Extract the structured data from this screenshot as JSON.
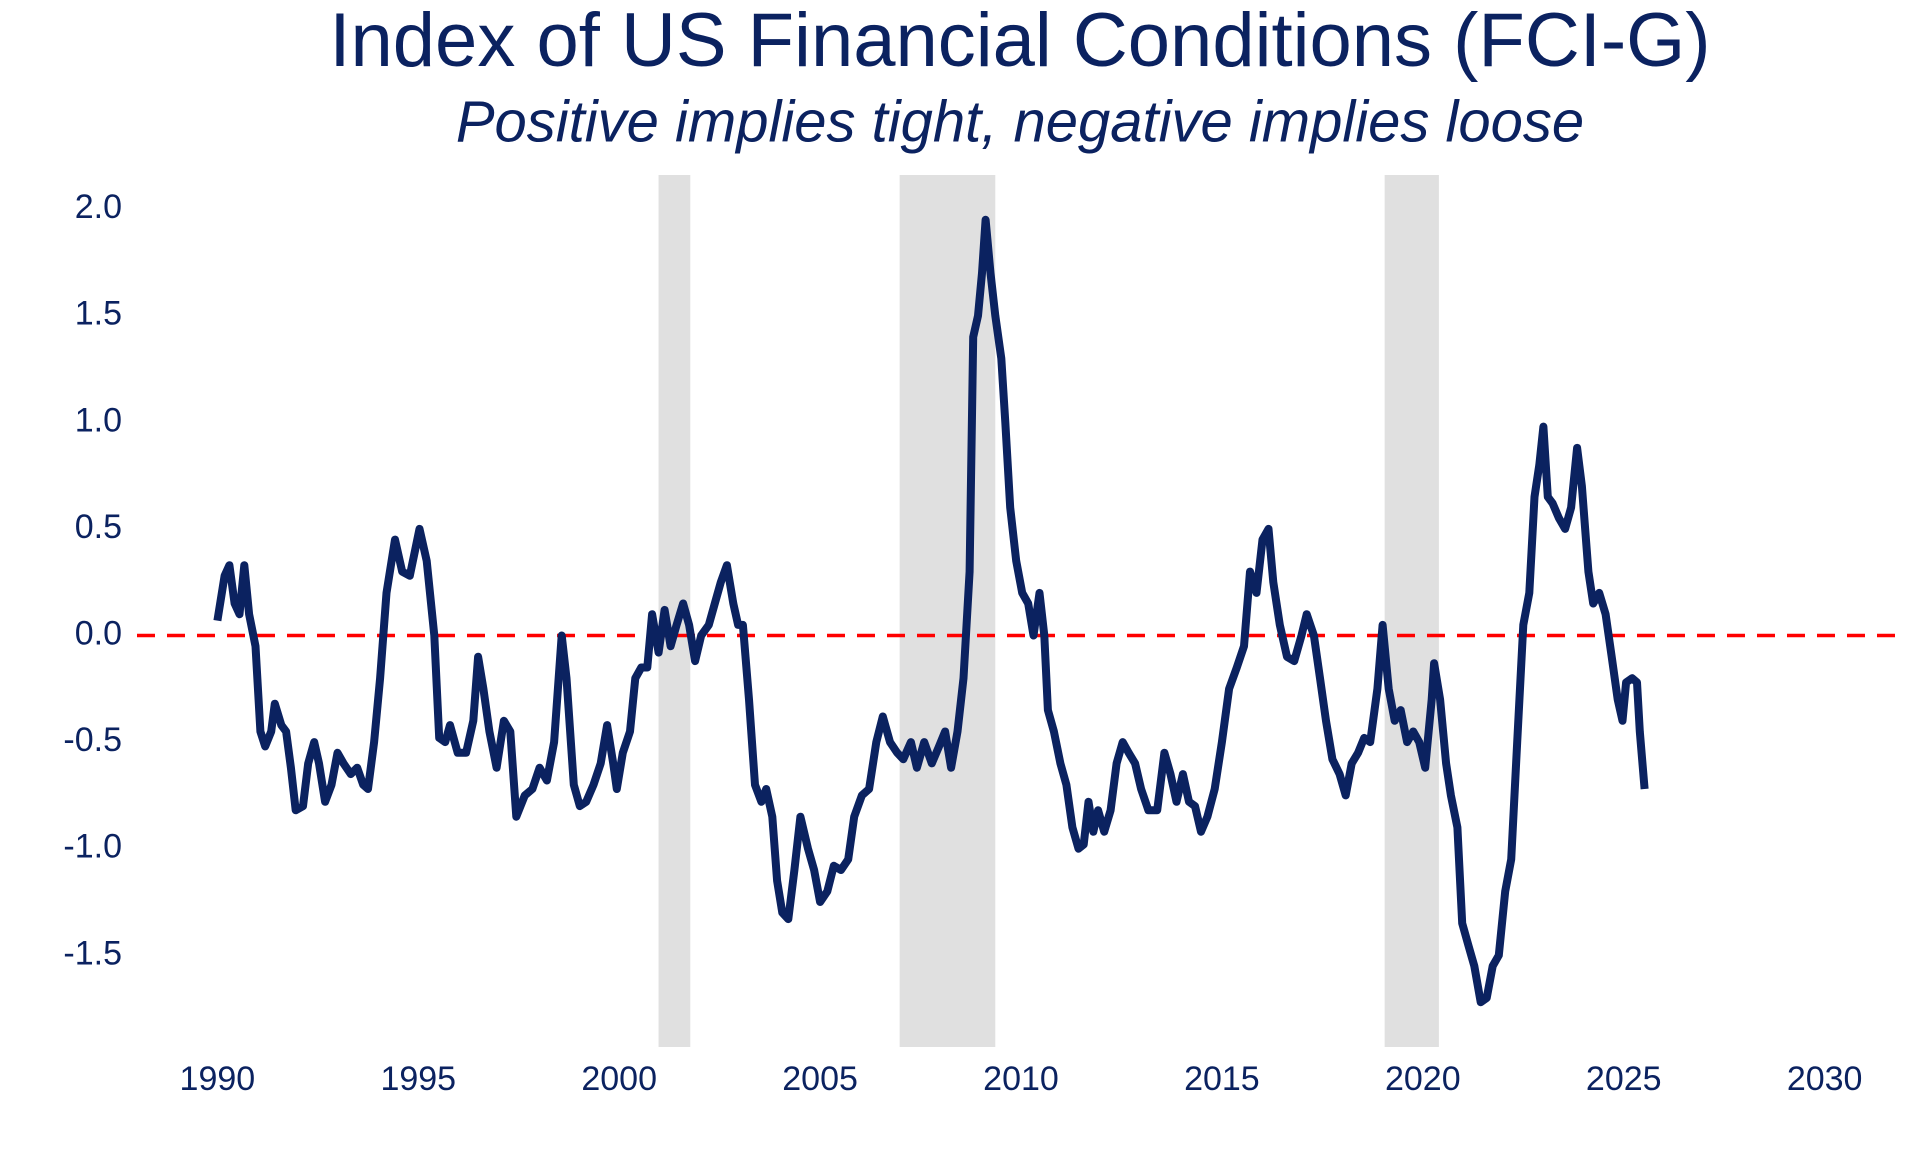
{
  "chart_data": {
    "type": "line",
    "title": "Index of US Financial Conditions (FCI-G)",
    "subtitle": "Positive implies tight, negative implies loose",
    "color": "#0b2260",
    "reference_line": {
      "value": 0,
      "color": "#ff0000"
    },
    "shaded_periods": [
      [
        2000.98,
        2001.77
      ],
      [
        2006.98,
        2009.36
      ],
      [
        2019.05,
        2020.4
      ]
    ],
    "shade_color": "#e0e0e0",
    "xlim": [
      1988,
      2032
    ],
    "ylim": [
      -1.93,
      2.16
    ],
    "xticks": [
      1990,
      1995,
      2000,
      2005,
      2010,
      2015,
      2020,
      2025,
      2030
    ],
    "yticks": [
      {
        "value": 2,
        "label": "2.0"
      },
      1.5,
      {
        "value": 1,
        "label": "1.0"
      },
      0.5,
      {
        "value": 0,
        "label": "0.0"
      },
      -0.5,
      {
        "value": -1,
        "label": "-1.0"
      },
      -1.5
    ],
    "x": [
      1990.0,
      1990.18,
      1990.3,
      1990.43,
      1990.55,
      1990.67,
      1990.79,
      1990.95,
      1991.07,
      1991.19,
      1991.34,
      1991.43,
      1991.59,
      1991.71,
      1991.83,
      1991.95,
      1992.13,
      1992.26,
      1992.41,
      1992.53,
      1992.68,
      1992.84,
      1992.99,
      1993.14,
      1993.32,
      1993.48,
      1993.63,
      1993.75,
      1993.9,
      1994.05,
      1994.21,
      1994.42,
      1994.6,
      1994.79,
      1995.03,
      1995.21,
      1995.4,
      1995.52,
      1995.67,
      1995.79,
      1995.98,
      1996.19,
      1996.37,
      1996.49,
      1996.62,
      1996.77,
      1996.95,
      1997.13,
      1997.29,
      1997.44,
      1997.65,
      1997.84,
      1998.02,
      1998.2,
      1998.38,
      1998.57,
      1998.69,
      1998.87,
      1999.02,
      1999.18,
      1999.36,
      1999.54,
      1999.7,
      1999.85,
      1999.94,
      2000.09,
      2000.27,
      2000.4,
      2000.55,
      2000.7,
      2000.82,
      2000.98,
      2001.13,
      2001.28,
      2001.43,
      2001.59,
      2001.74,
      2001.89,
      2002.04,
      2002.23,
      2002.38,
      2002.53,
      2002.68,
      2002.84,
      2002.96,
      2003.08,
      2003.23,
      2003.38,
      2003.54,
      2003.66,
      2003.81,
      2003.93,
      2004.06,
      2004.21,
      2004.36,
      2004.51,
      2004.7,
      2004.85,
      2005.0,
      2005.18,
      2005.34,
      2005.52,
      2005.7,
      2005.85,
      2006.04,
      2006.22,
      2006.4,
      2006.56,
      2006.74,
      2006.92,
      2007.07,
      2007.26,
      2007.41,
      2007.59,
      2007.78,
      2007.96,
      2008.11,
      2008.26,
      2008.42,
      2008.57,
      2008.72,
      2008.81,
      2008.93,
      2009.03,
      2009.12,
      2009.24,
      2009.36,
      2009.51,
      2009.61,
      2009.73,
      2009.88,
      2010.03,
      2010.18,
      2010.31,
      2010.46,
      2010.58,
      2010.67,
      2010.82,
      2010.98,
      2011.13,
      2011.28,
      2011.43,
      2011.56,
      2011.68,
      2011.8,
      2011.92,
      2012.07,
      2012.23,
      2012.38,
      2012.53,
      2012.68,
      2012.84,
      2012.99,
      2013.17,
      2013.39,
      2013.57,
      2013.72,
      2013.87,
      2014.03,
      2014.18,
      2014.33,
      2014.48,
      2014.64,
      2014.82,
      2015.0,
      2015.18,
      2015.37,
      2015.55,
      2015.7,
      2015.86,
      2016.01,
      2016.16,
      2016.28,
      2016.44,
      2016.62,
      2016.8,
      2016.98,
      2017.11,
      2017.29,
      2017.44,
      2017.59,
      2017.75,
      2017.93,
      2018.08,
      2018.23,
      2018.39,
      2018.54,
      2018.69,
      2018.87,
      2019.0,
      2019.15,
      2019.3,
      2019.45,
      2019.61,
      2019.76,
      2019.91,
      2020.06,
      2020.22,
      2020.28,
      2020.43,
      2020.58,
      2020.7,
      2020.86,
      2020.98,
      2021.13,
      2021.28,
      2021.44,
      2021.59,
      2021.74,
      2021.89,
      2022.05,
      2022.2,
      2022.35,
      2022.5,
      2022.65,
      2022.78,
      2022.9,
      2023.0,
      2023.11,
      2023.23,
      2023.39,
      2023.54,
      2023.69,
      2023.84,
      2023.96,
      2024.12,
      2024.24,
      2024.39,
      2024.55,
      2024.7,
      2024.85,
      2024.97,
      2025.06,
      2025.21,
      2025.33,
      2025.4,
      2025.52
    ],
    "values": [
      0.07,
      0.28,
      0.33,
      0.15,
      0.1,
      0.33,
      0.1,
      -0.05,
      -0.45,
      -0.52,
      -0.45,
      -0.32,
      -0.42,
      -0.45,
      -0.62,
      -0.82,
      -0.8,
      -0.6,
      -0.5,
      -0.6,
      -0.78,
      -0.7,
      -0.55,
      -0.6,
      -0.65,
      -0.62,
      -0.7,
      -0.72,
      -0.5,
      -0.2,
      0.2,
      0.45,
      0.3,
      0.28,
      0.5,
      0.35,
      0,
      -0.48,
      -0.5,
      -0.42,
      -0.55,
      -0.55,
      -0.4,
      -0.1,
      -0.25,
      -0.45,
      -0.62,
      -0.4,
      -0.45,
      -0.85,
      -0.75,
      -0.72,
      -0.62,
      -0.68,
      -0.5,
      0.0,
      -0.2,
      -0.7,
      -0.8,
      -0.78,
      -0.7,
      -0.6,
      -0.42,
      -0.6,
      -0.72,
      -0.55,
      -0.45,
      -0.2,
      -0.15,
      -0.15,
      0.1,
      -0.08,
      0.12,
      -0.05,
      0.05,
      0.15,
      0.05,
      -0.12,
      0.0,
      0.05,
      0.15,
      0.25,
      0.33,
      0.15,
      0.05,
      0.05,
      -0.3,
      -0.7,
      -0.78,
      -0.72,
      -0.85,
      -1.15,
      -1.3,
      -1.33,
      -1.1,
      -0.85,
      -1.0,
      -1.1,
      -1.25,
      -1.2,
      -1.08,
      -1.1,
      -1.05,
      -0.85,
      -0.75,
      -0.72,
      -0.5,
      -0.38,
      -0.5,
      -0.55,
      -0.58,
      -0.5,
      -0.62,
      -0.5,
      -0.6,
      -0.52,
      -0.45,
      -0.62,
      -0.45,
      -0.2,
      0.3,
      1.4,
      1.5,
      1.7,
      1.95,
      1.7,
      1.5,
      1.3,
      1.0,
      0.6,
      0.35,
      0.2,
      0.15,
      0.0,
      0.2,
      0.0,
      -0.35,
      -0.45,
      -0.6,
      -0.7,
      -0.9,
      -1.0,
      -0.98,
      -0.78,
      -0.92,
      -0.82,
      -0.92,
      -0.82,
      -0.6,
      -0.5,
      -0.55,
      -0.6,
      -0.72,
      -0.82,
      -0.82,
      -0.55,
      -0.65,
      -0.78,
      -0.65,
      -0.78,
      -0.8,
      -0.92,
      -0.85,
      -0.72,
      -0.5,
      -0.25,
      -0.15,
      -0.05,
      0.3,
      0.2,
      0.45,
      0.5,
      0.25,
      0.05,
      -0.1,
      -0.12,
      0.0,
      0.1,
      0.0,
      -0.2,
      -0.4,
      -0.58,
      -0.65,
      -0.75,
      -0.6,
      -0.55,
      -0.48,
      -0.5,
      -0.25,
      0.05,
      -0.25,
      -0.4,
      -0.35,
      -0.5,
      -0.45,
      -0.5,
      -0.62,
      -0.3,
      -0.13,
      -0.3,
      -0.6,
      -0.75,
      -0.9,
      -1.35,
      -1.45,
      -1.55,
      -1.72,
      -1.7,
      -1.55,
      -1.5,
      -1.2,
      -1.05,
      -0.5,
      0.05,
      0.2,
      0.65,
      0.8,
      0.98,
      0.65,
      0.62,
      0.55,
      0.5,
      0.6,
      0.88,
      0.7,
      0.3,
      0.15,
      0.2,
      0.1,
      -0.1,
      -0.3,
      -0.4,
      -0.22,
      -0.2,
      -0.22,
      -0.45,
      -0.72
    ]
  }
}
